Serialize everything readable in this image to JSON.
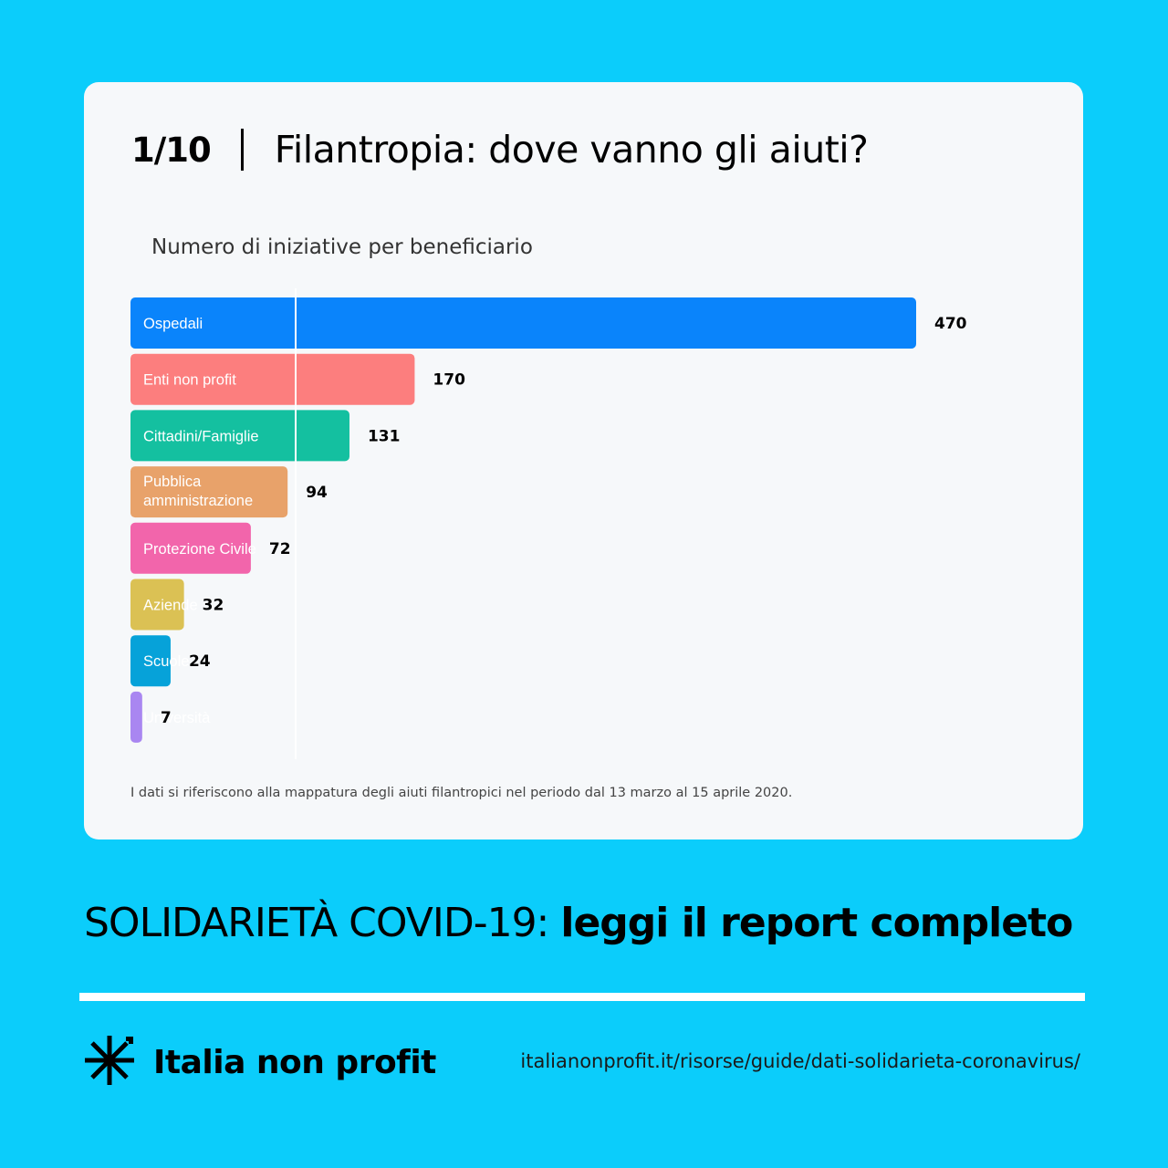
{
  "card": {
    "counter": "1/10",
    "title": "Filantropia: dove vanno gli aiuti?",
    "note": "I dati si riferiscono alla mappatura degli aiuti filantropici nel periodo dal 13 marzo al 15 aprile 2020."
  },
  "chart_data": {
    "type": "bar",
    "orientation": "horizontal",
    "title": "Numero di iniziative per beneficiario",
    "categories": [
      "Ospedali",
      "Enti non profit",
      "Cittadini/Famiglie",
      "Pubblica amministrazione",
      "Protezione Civile",
      "Aziende",
      "Scuole",
      "Università"
    ],
    "values": [
      470,
      170,
      131,
      94,
      72,
      32,
      24,
      7
    ],
    "colors": [
      "#0a84fb",
      "#fc7e7e",
      "#14c0a0",
      "#e8a26a",
      "#f265ab",
      "#dbc154",
      "#06a2d9",
      "#a986f1"
    ],
    "xlim": [
      0,
      470
    ],
    "grid": false,
    "legend": "none"
  },
  "footer": {
    "headline_regular": "SOLIDARIETÀ COVID-19: ",
    "headline_bold": "leggi il report completo",
    "brand_name": "Italia non profit",
    "brand_icon": "asterisk-star-icon",
    "url": "italianonprofit.it/risorse/guide/dati-solidarieta-coronavirus/"
  }
}
